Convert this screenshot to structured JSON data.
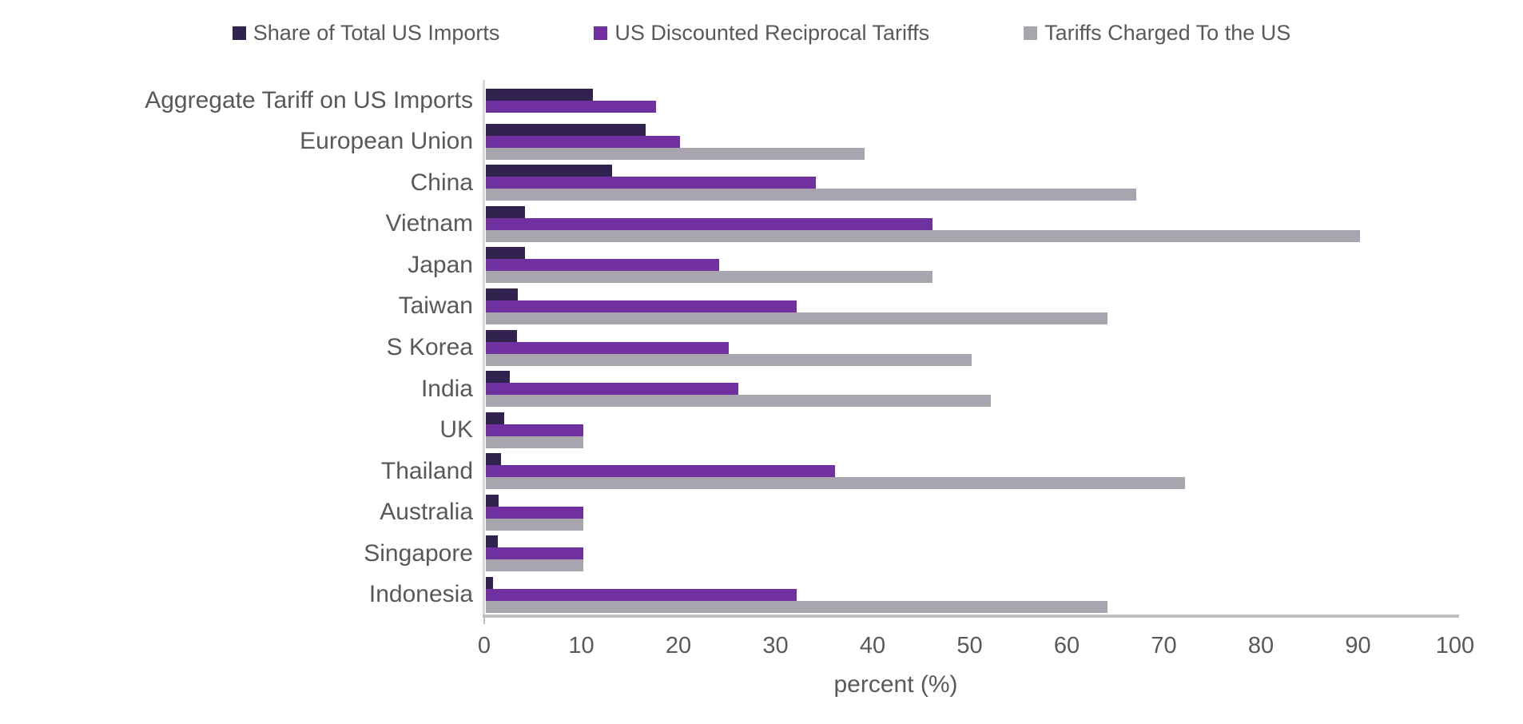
{
  "chart_data": {
    "type": "bar",
    "orientation": "horizontal",
    "title": "",
    "xlabel": "percent (%)",
    "ylabel": "",
    "xlim": [
      0,
      100
    ],
    "x_ticks": [
      0,
      10,
      20,
      30,
      40,
      50,
      60,
      70,
      80,
      90,
      100
    ],
    "grid": false,
    "legend_position": "top",
    "categories": [
      "Aggregate Tariff on US Imports",
      "European Union",
      "China",
      "Vietnam",
      "Japan",
      "Taiwan",
      "S Korea",
      "India",
      "UK",
      "Thailand",
      "Australia",
      "Singapore",
      "Indonesia"
    ],
    "series": [
      {
        "name": "Share of Total US Imports",
        "color": "#312250",
        "values": [
          11,
          16.5,
          13,
          4,
          4,
          3.3,
          3.2,
          2.5,
          1.9,
          1.6,
          1.3,
          1.2,
          0.7
        ]
      },
      {
        "name": "US Discounted Reciprocal Tariffs",
        "color": "#7030A0",
        "values": [
          17.5,
          20,
          34,
          46,
          24,
          32,
          25,
          26,
          10,
          36,
          10,
          10,
          32
        ]
      },
      {
        "name": "Tariffs Charged To the US",
        "color": "#A8A5AF",
        "values": [
          null,
          39,
          67,
          90,
          46,
          64,
          50,
          52,
          10,
          72,
          10,
          10,
          64
        ]
      }
    ]
  },
  "colors": {
    "axis_line": "#D9D9D9",
    "x_axis_line": "#BFBFBF",
    "text": "#595959",
    "background": "#FFFFFF"
  }
}
